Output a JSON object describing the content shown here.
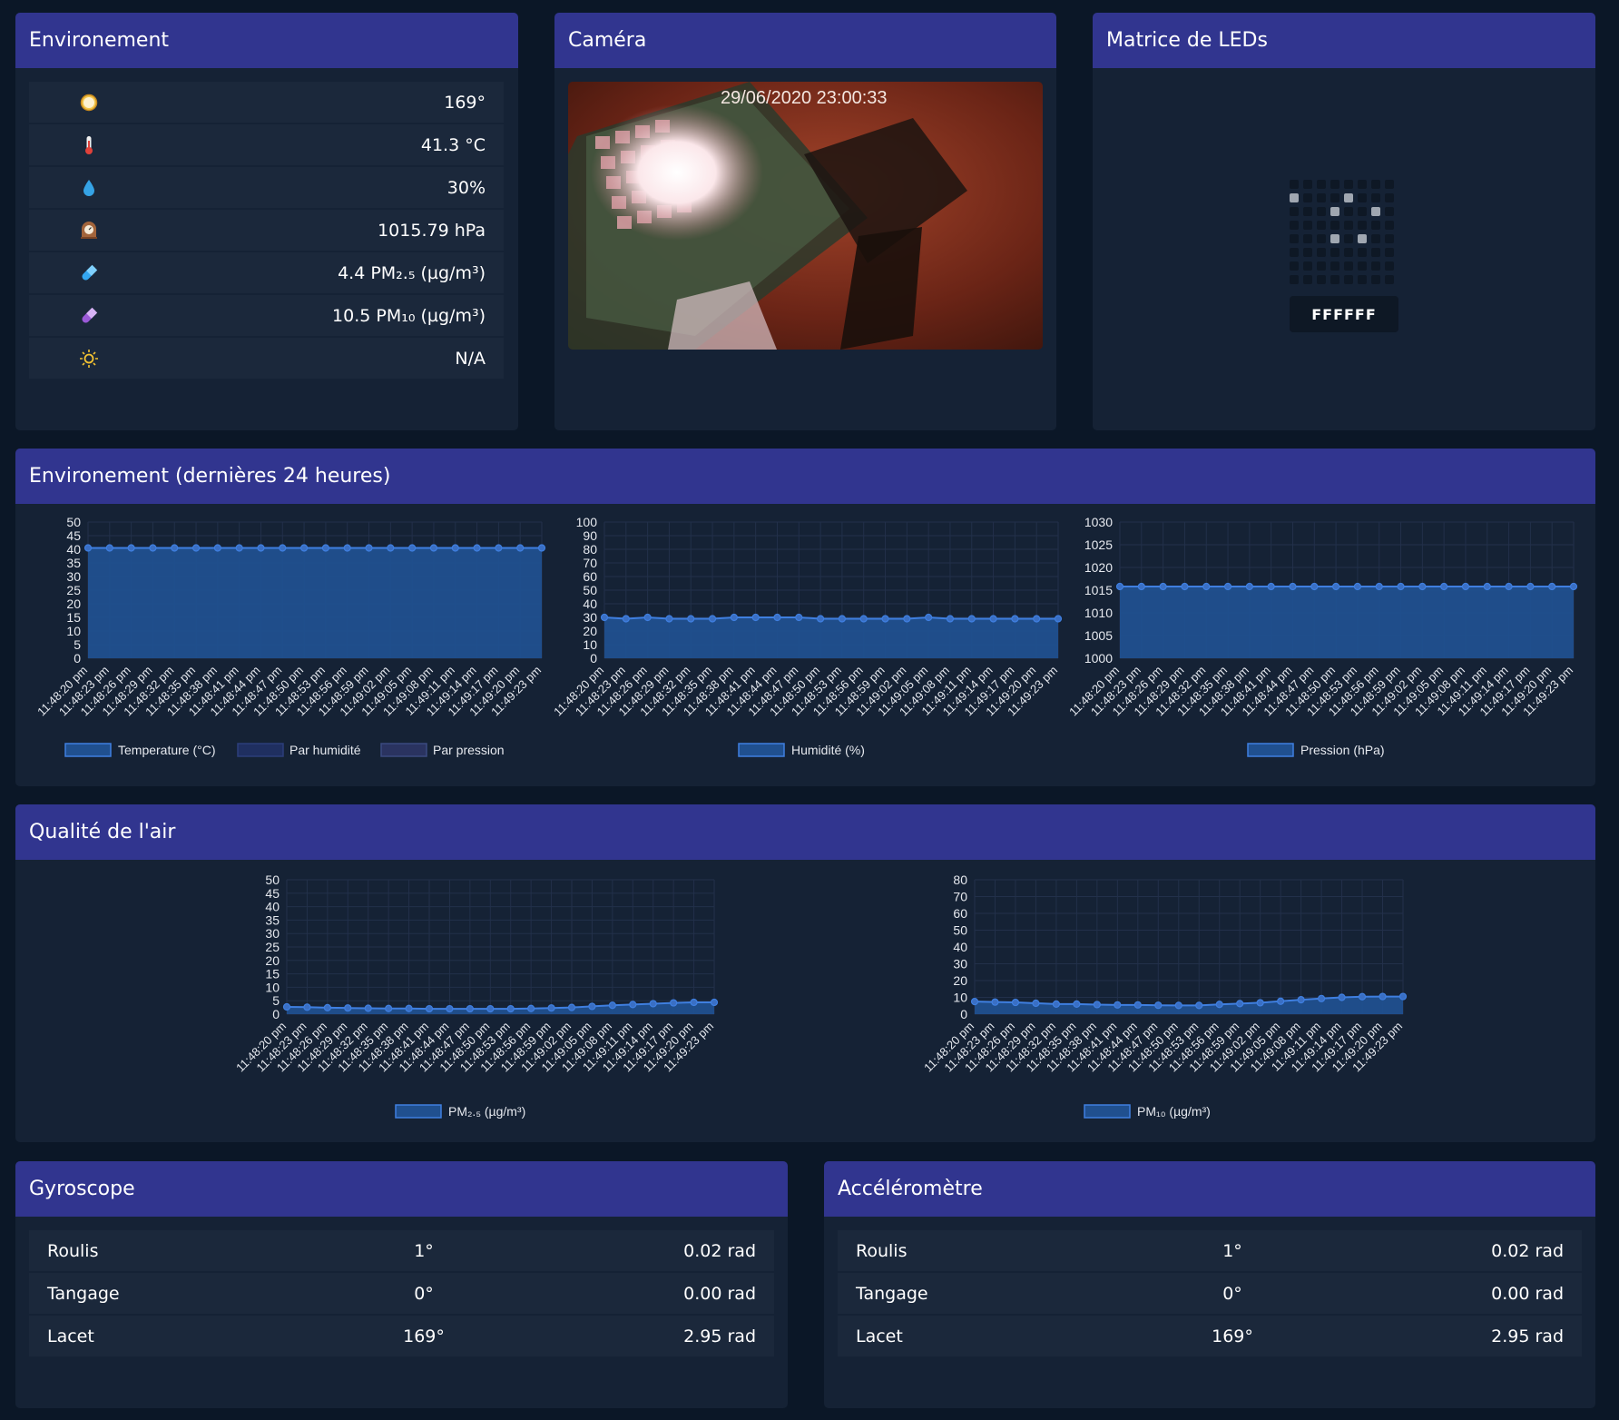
{
  "environment": {
    "title": "Environement",
    "rows": [
      {
        "icon": "compass-icon",
        "value": "169°"
      },
      {
        "icon": "thermometer-icon",
        "value": "41.3 °C"
      },
      {
        "icon": "water-drop-icon",
        "value": "30%"
      },
      {
        "icon": "barometer-icon",
        "value": "1015.79 hPa"
      },
      {
        "icon": "pm25-capsule-icon",
        "value": "4.4 PM₂.₅ (µg/m³)"
      },
      {
        "icon": "pm10-capsule-icon",
        "value": "10.5 PM₁₀ (µg/m³)"
      },
      {
        "icon": "sun-icon",
        "value": "N/A"
      }
    ]
  },
  "camera": {
    "title": "Caméra",
    "timestamp": "29/06/2020  23:00:33"
  },
  "led": {
    "title": "Matrice de LEDs",
    "color_hex": "FFFFFF",
    "on_color": "#a0a7b1",
    "off_color": "#0e1825",
    "matrix": [
      [
        0,
        0,
        0,
        0,
        0,
        0,
        0,
        0
      ],
      [
        1,
        0,
        0,
        0,
        1,
        0,
        0,
        0
      ],
      [
        0,
        0,
        0,
        1,
        0,
        0,
        1,
        0
      ],
      [
        0,
        0,
        0,
        0,
        0,
        0,
        0,
        0
      ],
      [
        0,
        0,
        0,
        1,
        0,
        1,
        0,
        0
      ],
      [
        0,
        0,
        0,
        0,
        0,
        0,
        0,
        0
      ],
      [
        0,
        0,
        0,
        0,
        0,
        0,
        0,
        0
      ],
      [
        0,
        0,
        0,
        0,
        0,
        0,
        0,
        0
      ]
    ]
  },
  "history": {
    "title": "Environement (dernières 24 heures)",
    "legend_temp": [
      "Temperature (°C)",
      "Par humidité",
      "Par pression"
    ],
    "legend_hum": "Humidité (%)",
    "legend_press": "Pression (hPa)"
  },
  "air": {
    "title": "Qualité de l'air",
    "legend_pm25": "PM₂.₅ (µg/m³)",
    "legend_pm10": "PM₁₀ (µg/m³)"
  },
  "gyro": {
    "title": "Gyroscope",
    "rows": [
      {
        "label": "Roulis",
        "deg": "1°",
        "rad": "0.02 rad"
      },
      {
        "label": "Tangage",
        "deg": "0°",
        "rad": "0.00 rad"
      },
      {
        "label": "Lacet",
        "deg": "169°",
        "rad": "2.95 rad"
      }
    ]
  },
  "accel": {
    "title": "Accéléromètre",
    "rows": [
      {
        "label": "Roulis",
        "deg": "1°",
        "rad": "0.02 rad"
      },
      {
        "label": "Tangage",
        "deg": "0°",
        "rad": "0.00 rad"
      },
      {
        "label": "Lacet",
        "deg": "169°",
        "rad": "2.95 rad"
      }
    ]
  },
  "colors": {
    "header": "#31358f",
    "card": "#152235",
    "row": "#1b283b",
    "line": "#3f7fe0",
    "fill": "#20508f"
  },
  "chart_data": [
    {
      "id": "temp",
      "type": "area",
      "x": [
        "11:48:20 pm",
        "11:48:23 pm",
        "11:48:26 pm",
        "11:48:29 pm",
        "11:48:32 pm",
        "11:48:35 pm",
        "11:48:38 pm",
        "11:48:41 pm",
        "11:48:44 pm",
        "11:48:47 pm",
        "11:48:50 pm",
        "11:48:53 pm",
        "11:48:56 pm",
        "11:48:59 pm",
        "11:49:02 pm",
        "11:49:05 pm",
        "11:49:08 pm",
        "11:49:11 pm",
        "11:49:14 pm",
        "11:49:17 pm",
        "11:49:20 pm",
        "11:49:23 pm"
      ],
      "series": [
        {
          "name": "Temperature (°C)",
          "values": [
            40.5,
            40.5,
            40.5,
            40.5,
            40.5,
            40.5,
            40.5,
            40.5,
            40.5,
            40.5,
            40.5,
            40.5,
            40.5,
            40.5,
            40.5,
            40.5,
            40.5,
            40.5,
            40.5,
            40.5,
            40.5,
            40.5
          ]
        }
      ],
      "yticks": [
        0,
        5,
        10,
        15,
        20,
        25,
        30,
        35,
        40,
        45,
        50
      ],
      "ylim": [
        0,
        50
      ],
      "grid": true
    },
    {
      "id": "hum",
      "type": "area",
      "x": [
        "11:48:20 pm",
        "11:48:23 pm",
        "11:48:26 pm",
        "11:48:29 pm",
        "11:48:32 pm",
        "11:48:35 pm",
        "11:48:38 pm",
        "11:48:41 pm",
        "11:48:44 pm",
        "11:48:47 pm",
        "11:48:50 pm",
        "11:48:53 pm",
        "11:48:56 pm",
        "11:48:59 pm",
        "11:49:02 pm",
        "11:49:05 pm",
        "11:49:08 pm",
        "11:49:11 pm",
        "11:49:14 pm",
        "11:49:17 pm",
        "11:49:20 pm",
        "11:49:23 pm"
      ],
      "series": [
        {
          "name": "Humidité (%)",
          "values": [
            30,
            29,
            30,
            29,
            29,
            29,
            30,
            30,
            30,
            30,
            29,
            29,
            29,
            29,
            29,
            30,
            29,
            29,
            29,
            29,
            29,
            29
          ]
        }
      ],
      "yticks": [
        0,
        10,
        20,
        30,
        40,
        50,
        60,
        70,
        80,
        90,
        100
      ],
      "ylim": [
        0,
        100
      ],
      "grid": true
    },
    {
      "id": "press",
      "type": "area",
      "x": [
        "11:48:20 pm",
        "11:48:23 pm",
        "11:48:26 pm",
        "11:48:29 pm",
        "11:48:32 pm",
        "11:48:35 pm",
        "11:48:38 pm",
        "11:48:41 pm",
        "11:48:44 pm",
        "11:48:47 pm",
        "11:48:50 pm",
        "11:48:53 pm",
        "11:48:56 pm",
        "11:48:59 pm",
        "11:49:02 pm",
        "11:49:05 pm",
        "11:49:08 pm",
        "11:49:11 pm",
        "11:49:14 pm",
        "11:49:17 pm",
        "11:49:20 pm",
        "11:49:23 pm"
      ],
      "series": [
        {
          "name": "Pression (hPa)",
          "values": [
            1015.8,
            1015.8,
            1015.8,
            1015.8,
            1015.8,
            1015.8,
            1015.8,
            1015.8,
            1015.8,
            1015.8,
            1015.8,
            1015.8,
            1015.8,
            1015.8,
            1015.8,
            1015.8,
            1015.8,
            1015.8,
            1015.8,
            1015.8,
            1015.8,
            1015.8
          ]
        }
      ],
      "yticks": [
        1000,
        1005,
        1010,
        1015,
        1020,
        1025,
        1030
      ],
      "ylim": [
        1000,
        1030
      ],
      "grid": true
    },
    {
      "id": "pm25",
      "type": "area",
      "x": [
        "11:48:20 pm",
        "11:48:23 pm",
        "11:48:26 pm",
        "11:48:29 pm",
        "11:48:32 pm",
        "11:48:35 pm",
        "11:48:38 pm",
        "11:48:41 pm",
        "11:48:44 pm",
        "11:48:47 pm",
        "11:48:50 pm",
        "11:48:53 pm",
        "11:48:56 pm",
        "11:48:59 pm",
        "11:49:02 pm",
        "11:49:05 pm",
        "11:49:08 pm",
        "11:49:11 pm",
        "11:49:14 pm",
        "11:49:17 pm",
        "11:49:20 pm",
        "11:49:23 pm"
      ],
      "series": [
        {
          "name": "PM₂.₅ (µg/m³)",
          "values": [
            2.7,
            2.6,
            2.4,
            2.3,
            2.2,
            2.1,
            2.1,
            2.0,
            2.0,
            2.0,
            2.0,
            2.0,
            2.1,
            2.3,
            2.5,
            2.9,
            3.3,
            3.6,
            3.9,
            4.2,
            4.4,
            4.4
          ]
        }
      ],
      "yticks": [
        0,
        5,
        10,
        15,
        20,
        25,
        30,
        35,
        40,
        45,
        50
      ],
      "ylim": [
        0,
        50
      ],
      "grid": true
    },
    {
      "id": "pm10",
      "type": "area",
      "x": [
        "11:48:20 pm",
        "11:48:23 pm",
        "11:48:26 pm",
        "11:48:29 pm",
        "11:48:32 pm",
        "11:48:35 pm",
        "11:48:38 pm",
        "11:48:41 pm",
        "11:48:44 pm",
        "11:48:47 pm",
        "11:48:50 pm",
        "11:48:53 pm",
        "11:48:56 pm",
        "11:48:59 pm",
        "11:49:02 pm",
        "11:49:05 pm",
        "11:49:08 pm",
        "11:49:11 pm",
        "11:49:14 pm",
        "11:49:17 pm",
        "11:49:20 pm",
        "11:49:23 pm"
      ],
      "series": [
        {
          "name": "PM₁₀ (µg/m³)",
          "values": [
            7.5,
            7.2,
            7.0,
            6.5,
            6.0,
            6.0,
            5.7,
            5.5,
            5.5,
            5.3,
            5.2,
            5.2,
            5.8,
            6.3,
            6.8,
            7.7,
            8.6,
            9.3,
            10.0,
            10.4,
            10.5,
            10.5
          ]
        }
      ],
      "yticks": [
        0,
        10,
        20,
        30,
        40,
        50,
        60,
        70,
        80
      ],
      "ylim": [
        0,
        80
      ],
      "grid": true
    }
  ]
}
